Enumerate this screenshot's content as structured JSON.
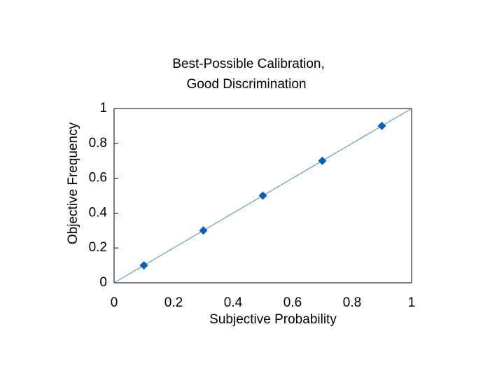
{
  "chart_data": {
    "type": "scatter",
    "title": [
      "Best-Possible Calibration,",
      "Good Discrimination"
    ],
    "x_label": "Subjective Probability",
    "y_label": "Objective Frequency",
    "series": [
      {
        "color": "#0a5fb4",
        "x": [
          0.1,
          0.3,
          0.5,
          0.7,
          0.9
        ],
        "values": [
          0.1,
          0.3,
          0.5,
          0.7,
          0.9
        ]
      }
    ],
    "reference_line": true,
    "reference_line_color": "#4a86b8",
    "xlim": [
      0,
      1
    ],
    "xticks": [
      0,
      0.2,
      0.4,
      0.6,
      0.8,
      1
    ],
    "ylim": [
      0,
      1
    ],
    "yticks": [
      0,
      0.2,
      0.4,
      0.6,
      0.8,
      1
    ],
    "grid": false
  }
}
